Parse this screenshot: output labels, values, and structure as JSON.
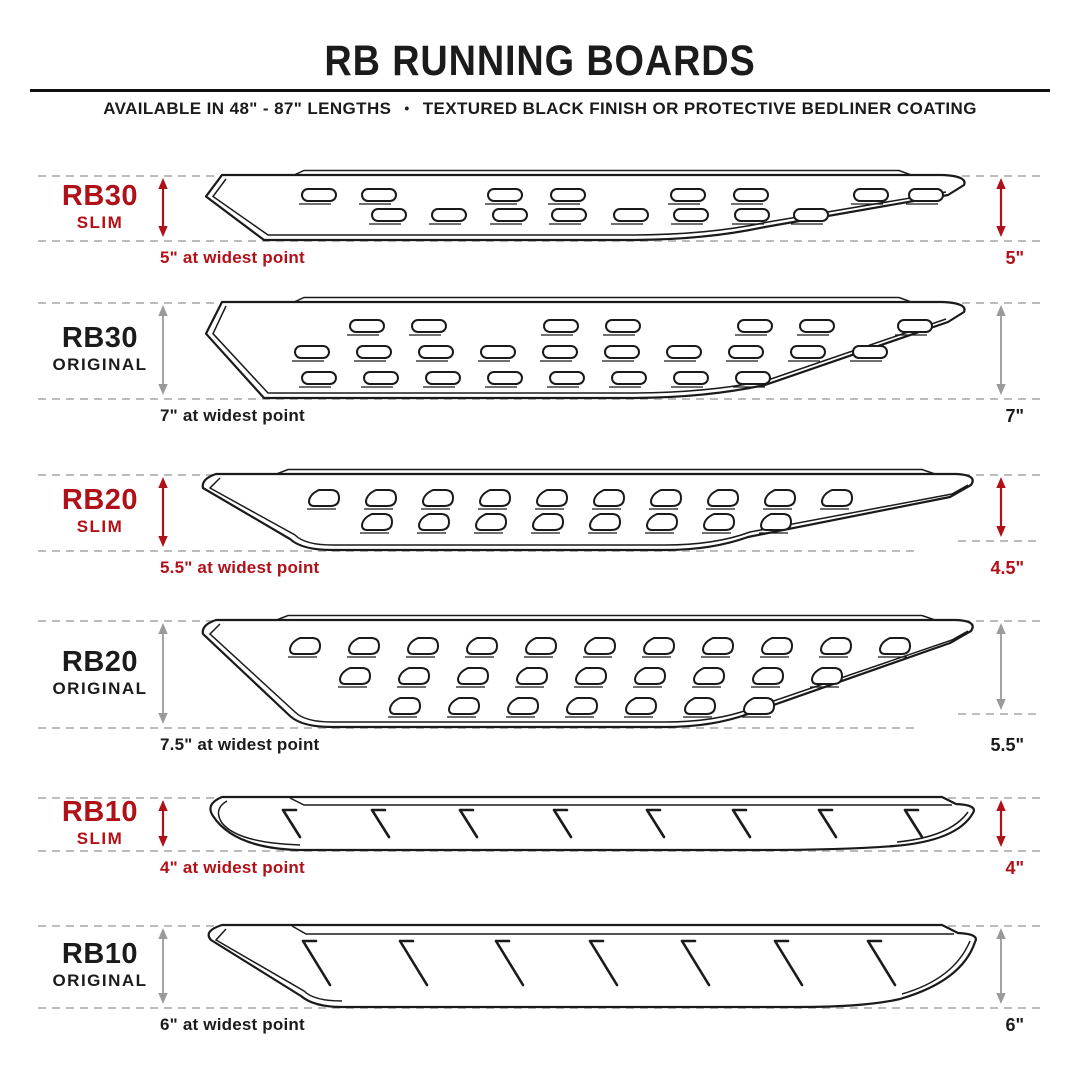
{
  "header": {
    "title": "RB RUNNING BOARDS",
    "subtitle_left": "AVAILABLE IN 48\" - 87\" LENGTHS",
    "subtitle_bullet": "•",
    "subtitle_right": "TEXTURED BLACK FINISH OR PROTECTIVE BEDLINER COATING"
  },
  "colors": {
    "accent": "#b01119",
    "ink": "#1b1b1b",
    "muted_arrow": "#9a9a9a",
    "dash_line": "#bcbcbc"
  },
  "sections": [
    {
      "model": "RB30",
      "variant": "SLIM",
      "highlight": true,
      "widest_label": "5\" at widest point",
      "end_height_label": "5\"",
      "slot_style": "oval-slots",
      "slot_rows": 2
    },
    {
      "model": "RB30",
      "variant": "ORIGINAL",
      "highlight": false,
      "widest_label": "7\" at widest point",
      "end_height_label": "7\"",
      "slot_style": "oval-slots",
      "slot_rows": 3
    },
    {
      "model": "RB20",
      "variant": "SLIM",
      "highlight": true,
      "widest_label": "5.5\" at widest point",
      "end_height_label": "4.5\"",
      "slot_style": "d-slots",
      "slot_rows": 2
    },
    {
      "model": "RB20",
      "variant": "ORIGINAL",
      "highlight": false,
      "widest_label": "7.5\" at widest point",
      "end_height_label": "5.5\"",
      "slot_style": "d-slots",
      "slot_rows": 3
    },
    {
      "model": "RB10",
      "variant": "SLIM",
      "highlight": true,
      "widest_label": "4\" at widest point",
      "end_height_label": "4\"",
      "slot_style": "slash-tread",
      "slot_rows": 1
    },
    {
      "model": "RB10",
      "variant": "ORIGINAL",
      "highlight": false,
      "widest_label": "6\" at widest point",
      "end_height_label": "6\"",
      "slot_style": "slash-tread",
      "slot_rows": 1
    }
  ]
}
